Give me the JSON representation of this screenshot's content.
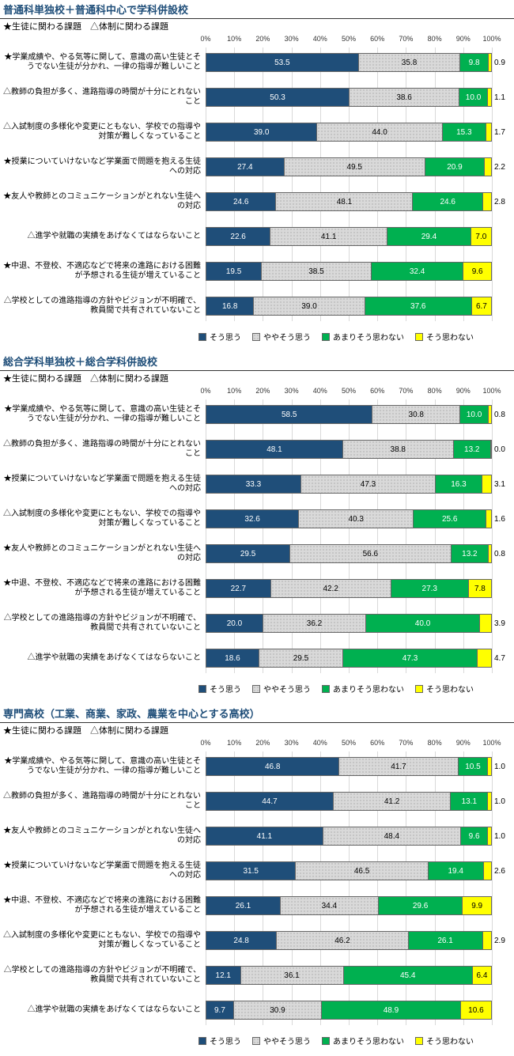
{
  "colors": {
    "s1": "#1f4e79",
    "s2": "#d9d9d9",
    "s3": "#00b050",
    "s4": "#ffff00",
    "grid": "#d9d9d9",
    "title": "#1f4e79"
  },
  "axis_ticks": [
    0,
    10,
    20,
    30,
    40,
    50,
    60,
    70,
    80,
    90,
    100
  ],
  "legend": [
    "そう思う",
    "ややそう思う",
    "あまりそう思わない",
    "そう思わない"
  ],
  "subtitle": "★生徒に関わる課題　△体制に関わる課題",
  "charts": [
    {
      "title": "普通科単独校＋普通科中心で学科併設校",
      "rows": [
        {
          "label": "★学業成績や、やる気等に関して、意識の高い生徒とそうでない生徒が分かれ、一律の指導が難しいこと",
          "v": [
            53.5,
            35.8,
            9.8,
            0.9
          ]
        },
        {
          "label": "△教師の負担が多く、進路指導の時間が十分にとれないこと",
          "v": [
            50.3,
            38.6,
            10.0,
            1.1
          ]
        },
        {
          "label": "△入試制度の多様化や変更にともない、学校での指導や対策が難しくなっていること",
          "v": [
            39.0,
            44.0,
            15.3,
            1.7
          ]
        },
        {
          "label": "★授業についていけないなど学業面で問題を抱える生徒への対応",
          "v": [
            27.4,
            49.5,
            20.9,
            2.2
          ]
        },
        {
          "label": "★友人や教師とのコミュニケーションがとれない生徒への対応",
          "v": [
            24.6,
            48.1,
            24.6,
            2.8
          ]
        },
        {
          "label": "△進学や就職の実績をあげなくてはならないこと",
          "v": [
            22.6,
            41.1,
            29.4,
            7.0
          ]
        },
        {
          "label": "★中退、不登校、不適応などで将来の進路における困難が予想される生徒が増えていること",
          "v": [
            19.5,
            38.5,
            32.4,
            9.6
          ]
        },
        {
          "label": "△学校としての進路指導の方針やビジョンが不明確で、教員間で共有されていないこと",
          "v": [
            16.8,
            39.0,
            37.6,
            6.7
          ]
        }
      ]
    },
    {
      "title": "総合学科単独校＋総合学科併設校",
      "rows": [
        {
          "label": "★学業成績や、やる気等に関して、意識の高い生徒とそうでない生徒が分かれ、一律の指導が難しいこと",
          "v": [
            58.5,
            30.8,
            10.0,
            0.8
          ]
        },
        {
          "label": "△教師の負担が多く、進路指導の時間が十分にとれないこと",
          "v": [
            48.1,
            38.8,
            13.2,
            0.0
          ]
        },
        {
          "label": "★授業についていけないなど学業面で問題を抱える生徒への対応",
          "v": [
            33.3,
            47.3,
            16.3,
            3.1
          ]
        },
        {
          "label": "△入試制度の多様化や変更にともない、学校での指導や対策が難しくなっていること",
          "v": [
            32.6,
            40.3,
            25.6,
            1.6
          ]
        },
        {
          "label": "★友人や教師とのコミュニケーションがとれない生徒への対応",
          "v": [
            29.5,
            56.6,
            13.2,
            0.8
          ]
        },
        {
          "label": "★中退、不登校、不適応などで将来の進路における困難が予想される生徒が増えていること",
          "v": [
            22.7,
            42.2,
            27.3,
            7.8
          ]
        },
        {
          "label": "△学校としての進路指導の方針やビジョンが不明確で、教員間で共有されていないこと",
          "v": [
            20.0,
            36.2,
            40.0,
            3.9
          ]
        },
        {
          "label": "△進学や就職の実績をあげなくてはならないこと",
          "v": [
            18.6,
            29.5,
            47.3,
            4.7
          ]
        }
      ]
    },
    {
      "title": "専門高校（工業、商業、家政、農業を中心とする高校）",
      "rows": [
        {
          "label": "★学業成績や、やる気等に関して、意識の高い生徒とそうでない生徒が分かれ、一律の指導が難しいこと",
          "v": [
            46.8,
            41.7,
            10.5,
            1.0
          ]
        },
        {
          "label": "△教師の負担が多く、進路指導の時間が十分にとれないこと",
          "v": [
            44.7,
            41.2,
            13.1,
            1.0
          ]
        },
        {
          "label": "★友人や教師とのコミュニケーションがとれない生徒への対応",
          "v": [
            41.1,
            48.4,
            9.6,
            1.0
          ]
        },
        {
          "label": "★授業についていけないなど学業面で問題を抱える生徒への対応",
          "v": [
            31.5,
            46.5,
            19.4,
            2.6
          ]
        },
        {
          "label": "★中退、不登校、不適応などで将来の進路における困難が予想される生徒が増えていること",
          "v": [
            26.1,
            34.4,
            29.6,
            9.9
          ]
        },
        {
          "label": "△入試制度の多様化や変更にともない、学校での指導や対策が難しくなっていること",
          "v": [
            24.8,
            46.2,
            26.1,
            2.9
          ]
        },
        {
          "label": "△学校としての進路指導の方針やビジョンが不明確で、教員間で共有されていないこと",
          "v": [
            12.1,
            36.1,
            45.4,
            6.4
          ]
        },
        {
          "label": "△進学や就職の実績をあげなくてはならないこと",
          "v": [
            9.7,
            30.9,
            48.9,
            10.6
          ]
        }
      ]
    }
  ]
}
